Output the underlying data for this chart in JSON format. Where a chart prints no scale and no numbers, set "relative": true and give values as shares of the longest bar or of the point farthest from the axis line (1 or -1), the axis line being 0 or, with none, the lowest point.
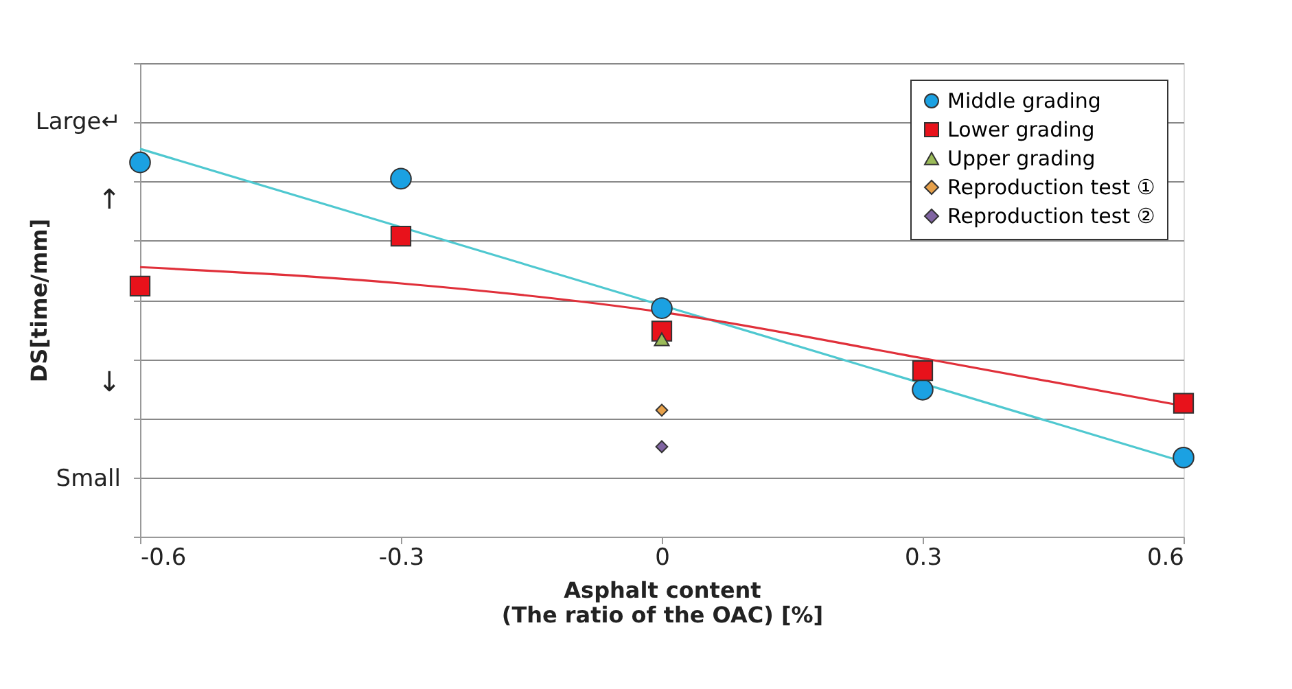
{
  "chart_data": {
    "type": "scatter",
    "relative": true,
    "xlabel": "Asphalt content\n(The ratio of the OAC) [%]",
    "ylabel": "DS[time/mm]",
    "annotations": [
      "Large↵",
      "↑",
      "↓",
      "Small"
    ],
    "xlim": [
      -0.6,
      0.6
    ],
    "xticks": [
      -0.6,
      -0.3,
      0,
      0.3,
      0.6
    ],
    "grid": "y",
    "legend": "top right",
    "series": [
      {
        "type": "line",
        "color": "#4fc8d0",
        "marker": "none",
        "x": [
          -0.6,
          0.6
        ],
        "values": [
          1,
          0.193
        ]
      },
      {
        "type": "line",
        "color": "#e0303a",
        "marker": "none",
        "x": [
          -0.6,
          -0.3,
          0,
          0.3,
          0.6
        ],
        "values": [
          0.695,
          0.653,
          0.579,
          0.46,
          0.337
        ]
      },
      {
        "name": "Middle grading",
        "color": "#1ba1e2",
        "marker": "circle",
        "x": [
          -0.6,
          -0.3,
          0,
          0.3,
          0.6
        ],
        "values": [
          0.965,
          0.923,
          0.589,
          0.379,
          0.204
        ]
      },
      {
        "name": "Lower grading",
        "color": "#e8121b",
        "marker": "square",
        "x": [
          -0.6,
          -0.3,
          0,
          0.3,
          0.6
        ],
        "values": [
          0.646,
          0.775,
          0.53,
          0.428,
          0.344
        ]
      },
      {
        "name": "Upper grading",
        "color": "#9bbb59",
        "marker": "triangle",
        "x": [
          0
        ],
        "values": [
          0.509
        ]
      },
      {
        "name": "Reproduction test ①",
        "color": "#e6a04a",
        "marker": "diamond",
        "x": [
          0
        ],
        "values": [
          0.326
        ]
      },
      {
        "name": "Reproduction test ②",
        "color": "#8064a2",
        "marker": "diamond",
        "x": [
          0
        ],
        "values": [
          0.232
        ]
      }
    ]
  }
}
